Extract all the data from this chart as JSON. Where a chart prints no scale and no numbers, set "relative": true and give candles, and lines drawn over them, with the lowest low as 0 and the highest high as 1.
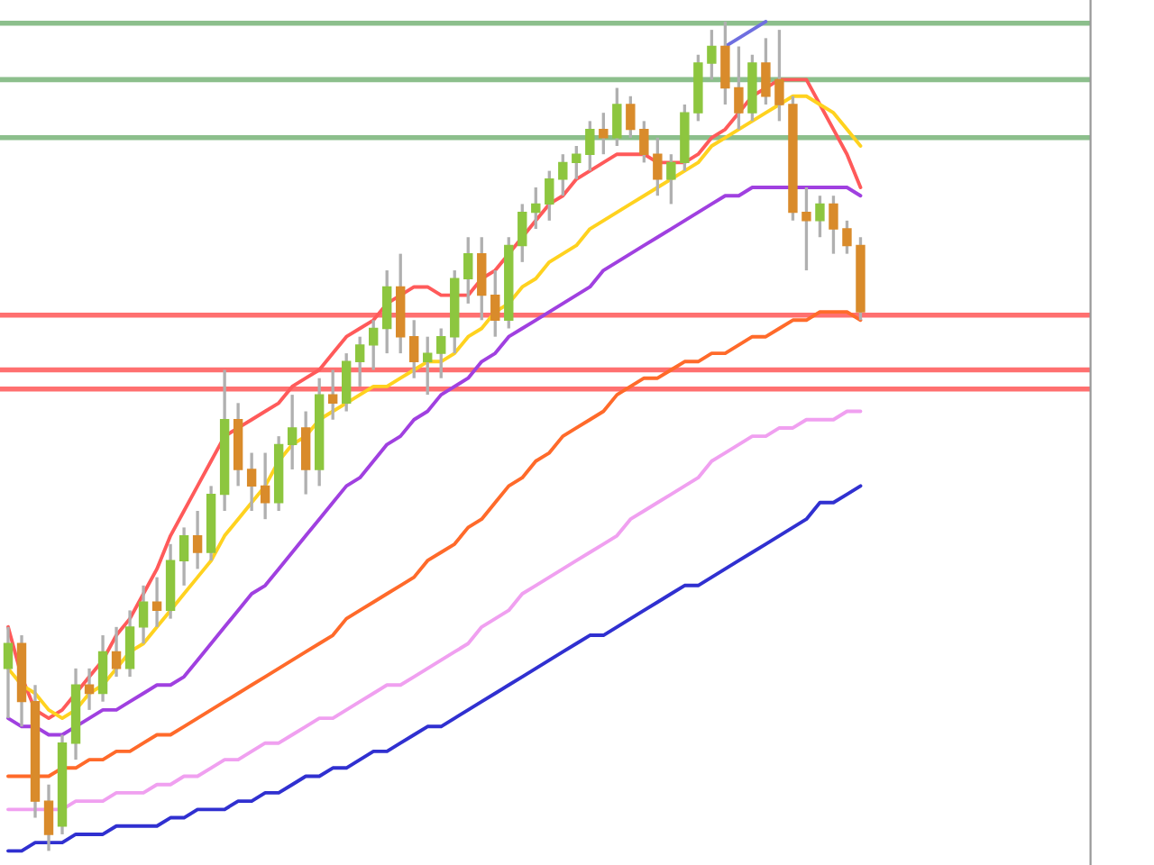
{
  "chart_data": {
    "type": "candlestick",
    "relative": true,
    "legend": false,
    "color": "#b0b0b0",
    "categories": [
      null,
      null,
      null,
      null,
      null,
      null,
      null,
      null,
      null,
      null,
      null,
      null,
      null,
      null,
      null,
      null,
      null,
      null,
      null,
      null,
      null,
      null,
      null,
      null,
      null,
      null,
      null,
      null,
      null,
      null,
      null,
      null,
      null,
      null,
      null,
      null,
      null,
      null,
      null,
      null,
      null,
      null,
      null,
      null,
      null,
      null,
      null,
      null,
      null,
      null,
      null,
      null,
      null,
      null,
      null,
      null,
      null,
      null,
      null,
      null,
      null,
      null,
      null,
      null
    ],
    "ohlc": [
      [
        0.22,
        0.27,
        0.16,
        0.25
      ],
      [
        0.25,
        0.26,
        0.15,
        0.18
      ],
      [
        0.18,
        0.2,
        0.04,
        0.06
      ],
      [
        0.06,
        0.08,
        0.0,
        0.02
      ],
      [
        0.03,
        0.14,
        0.02,
        0.13
      ],
      [
        0.13,
        0.22,
        0.11,
        0.2
      ],
      [
        0.2,
        0.22,
        0.17,
        0.19
      ],
      [
        0.19,
        0.26,
        0.18,
        0.24
      ],
      [
        0.24,
        0.27,
        0.21,
        0.22
      ],
      [
        0.22,
        0.29,
        0.21,
        0.27
      ],
      [
        0.27,
        0.32,
        0.25,
        0.3
      ],
      [
        0.3,
        0.33,
        0.27,
        0.29
      ],
      [
        0.29,
        0.37,
        0.28,
        0.35
      ],
      [
        0.35,
        0.39,
        0.32,
        0.38
      ],
      [
        0.38,
        0.41,
        0.34,
        0.36
      ],
      [
        0.36,
        0.44,
        0.35,
        0.43
      ],
      [
        0.43,
        0.58,
        0.41,
        0.52
      ],
      [
        0.52,
        0.54,
        0.44,
        0.46
      ],
      [
        0.46,
        0.48,
        0.41,
        0.44
      ],
      [
        0.44,
        0.48,
        0.4,
        0.42
      ],
      [
        0.42,
        0.5,
        0.41,
        0.49
      ],
      [
        0.49,
        0.55,
        0.46,
        0.51
      ],
      [
        0.51,
        0.53,
        0.43,
        0.46
      ],
      [
        0.46,
        0.57,
        0.44,
        0.55
      ],
      [
        0.55,
        0.58,
        0.52,
        0.54
      ],
      [
        0.54,
        0.6,
        0.53,
        0.59
      ],
      [
        0.59,
        0.62,
        0.56,
        0.61
      ],
      [
        0.61,
        0.64,
        0.58,
        0.63
      ],
      [
        0.63,
        0.7,
        0.6,
        0.68
      ],
      [
        0.68,
        0.72,
        0.6,
        0.62
      ],
      [
        0.62,
        0.64,
        0.57,
        0.59
      ],
      [
        0.59,
        0.62,
        0.55,
        0.6
      ],
      [
        0.6,
        0.63,
        0.57,
        0.62
      ],
      [
        0.62,
        0.7,
        0.6,
        0.69
      ],
      [
        0.69,
        0.74,
        0.66,
        0.72
      ],
      [
        0.72,
        0.74,
        0.64,
        0.67
      ],
      [
        0.67,
        0.7,
        0.62,
        0.64
      ],
      [
        0.64,
        0.74,
        0.63,
        0.73
      ],
      [
        0.73,
        0.78,
        0.71,
        0.77
      ],
      [
        0.77,
        0.8,
        0.75,
        0.78
      ],
      [
        0.78,
        0.82,
        0.76,
        0.81
      ],
      [
        0.81,
        0.84,
        0.79,
        0.83
      ],
      [
        0.83,
        0.85,
        0.81,
        0.84
      ],
      [
        0.84,
        0.88,
        0.82,
        0.87
      ],
      [
        0.87,
        0.89,
        0.84,
        0.86
      ],
      [
        0.86,
        0.92,
        0.85,
        0.9
      ],
      [
        0.9,
        0.91,
        0.86,
        0.87
      ],
      [
        0.87,
        0.88,
        0.83,
        0.84
      ],
      [
        0.84,
        0.86,
        0.79,
        0.81
      ],
      [
        0.81,
        0.84,
        0.78,
        0.83
      ],
      [
        0.83,
        0.9,
        0.82,
        0.89
      ],
      [
        0.89,
        0.96,
        0.88,
        0.95
      ],
      [
        0.95,
        0.99,
        0.93,
        0.97
      ],
      [
        0.97,
        1.0,
        0.9,
        0.92
      ],
      [
        0.92,
        0.97,
        0.87,
        0.89
      ],
      [
        0.89,
        0.96,
        0.88,
        0.95
      ],
      [
        0.95,
        0.98,
        0.9,
        0.91
      ],
      [
        0.93,
        0.99,
        0.88,
        0.9
      ],
      [
        0.9,
        0.91,
        0.76,
        0.77
      ],
      [
        0.77,
        0.8,
        0.7,
        0.76
      ],
      [
        0.76,
        0.79,
        0.74,
        0.78
      ],
      [
        0.78,
        0.79,
        0.72,
        0.75
      ],
      [
        0.75,
        0.76,
        0.72,
        0.73
      ],
      [
        0.73,
        0.74,
        0.64,
        0.65
      ]
    ],
    "colors": [
      "#8dc63f",
      "#d98b2b",
      "#d98b2b",
      "#d98b2b",
      "#8dc63f",
      "#8dc63f",
      "#d98b2b",
      "#8dc63f",
      "#d98b2b",
      "#8dc63f",
      "#8dc63f",
      "#d98b2b",
      "#8dc63f",
      "#8dc63f",
      "#d98b2b",
      "#8dc63f",
      "#8dc63f",
      "#d98b2b",
      "#d98b2b",
      "#d98b2b",
      "#8dc63f",
      "#8dc63f",
      "#d98b2b",
      "#8dc63f",
      "#d98b2b",
      "#8dc63f",
      "#8dc63f",
      "#8dc63f",
      "#8dc63f",
      "#d98b2b",
      "#d98b2b",
      "#8dc63f",
      "#8dc63f",
      "#8dc63f",
      "#8dc63f",
      "#d98b2b",
      "#d98b2b",
      "#8dc63f",
      "#8dc63f",
      "#8dc63f",
      "#8dc63f",
      "#8dc63f",
      "#8dc63f",
      "#8dc63f",
      "#d98b2b",
      "#8dc63f",
      "#d98b2b",
      "#d98b2b",
      "#d98b2b",
      "#8dc63f",
      "#8dc63f",
      "#8dc63f",
      "#8dc63f",
      "#d98b2b",
      "#d98b2b",
      "#8dc63f",
      "#d98b2b",
      "#d98b2b",
      "#d98b2b",
      "#d98b2b",
      "#8dc63f",
      "#d98b2b",
      "#d98b2b",
      "#d98b2b"
    ],
    "series": [
      {
        "type": "line",
        "color": "#ff5a5a",
        "values": [
          0.27,
          0.21,
          0.17,
          0.16,
          0.17,
          0.19,
          0.21,
          0.23,
          0.26,
          0.28,
          0.31,
          0.34,
          0.38,
          0.41,
          0.44,
          0.47,
          0.5,
          0.51,
          0.52,
          0.53,
          0.54,
          0.56,
          0.57,
          0.58,
          0.6,
          0.62,
          0.63,
          0.64,
          0.66,
          0.67,
          0.68,
          0.68,
          0.67,
          0.67,
          0.67,
          0.69,
          0.7,
          0.72,
          0.74,
          0.76,
          0.78,
          0.79,
          0.81,
          0.82,
          0.83,
          0.84,
          0.84,
          0.84,
          0.83,
          0.83,
          0.83,
          0.84,
          0.86,
          0.87,
          0.89,
          0.91,
          0.92,
          0.93,
          0.93,
          0.93,
          0.9,
          0.87,
          0.84,
          0.8
        ]
      },
      {
        "type": "line",
        "color": "#ffd21f",
        "values": [
          0.22,
          0.2,
          0.19,
          0.17,
          0.16,
          0.17,
          0.19,
          0.2,
          0.22,
          0.24,
          0.25,
          0.27,
          0.29,
          0.31,
          0.33,
          0.35,
          0.38,
          0.4,
          0.42,
          0.44,
          0.47,
          0.49,
          0.5,
          0.52,
          0.53,
          0.54,
          0.55,
          0.56,
          0.56,
          0.57,
          0.58,
          0.59,
          0.59,
          0.6,
          0.62,
          0.63,
          0.65,
          0.66,
          0.68,
          0.69,
          0.71,
          0.72,
          0.73,
          0.75,
          0.76,
          0.77,
          0.78,
          0.79,
          0.8,
          0.81,
          0.82,
          0.83,
          0.85,
          0.86,
          0.87,
          0.88,
          0.89,
          0.9,
          0.91,
          0.91,
          0.9,
          0.89,
          0.87,
          0.85
        ]
      },
      {
        "type": "line",
        "color": "#a040e0",
        "values": [
          0.16,
          0.15,
          0.15,
          0.14,
          0.14,
          0.15,
          0.16,
          0.17,
          0.17,
          0.18,
          0.19,
          0.2,
          0.2,
          0.21,
          0.23,
          0.25,
          0.27,
          0.29,
          0.31,
          0.32,
          0.34,
          0.36,
          0.38,
          0.4,
          0.42,
          0.44,
          0.45,
          0.47,
          0.49,
          0.5,
          0.52,
          0.53,
          0.55,
          0.56,
          0.57,
          0.59,
          0.6,
          0.62,
          0.63,
          0.64,
          0.65,
          0.66,
          0.67,
          0.68,
          0.7,
          0.71,
          0.72,
          0.73,
          0.74,
          0.75,
          0.76,
          0.77,
          0.78,
          0.79,
          0.79,
          0.8,
          0.8,
          0.8,
          0.8,
          0.8,
          0.8,
          0.8,
          0.8,
          0.79
        ]
      },
      {
        "type": "line",
        "color": "#ff6a2a",
        "values": [
          0.09,
          0.09,
          0.09,
          0.09,
          0.1,
          0.1,
          0.11,
          0.11,
          0.12,
          0.12,
          0.13,
          0.14,
          0.14,
          0.15,
          0.16,
          0.17,
          0.18,
          0.19,
          0.2,
          0.21,
          0.22,
          0.23,
          0.24,
          0.25,
          0.26,
          0.28,
          0.29,
          0.3,
          0.31,
          0.32,
          0.33,
          0.35,
          0.36,
          0.37,
          0.39,
          0.4,
          0.42,
          0.44,
          0.45,
          0.47,
          0.48,
          0.5,
          0.51,
          0.52,
          0.53,
          0.55,
          0.56,
          0.57,
          0.57,
          0.58,
          0.59,
          0.59,
          0.6,
          0.6,
          0.61,
          0.62,
          0.62,
          0.63,
          0.64,
          0.64,
          0.65,
          0.65,
          0.65,
          0.64
        ]
      },
      {
        "type": "line",
        "color": "#f0a0f0",
        "values": [
          0.05,
          0.05,
          0.05,
          0.05,
          0.05,
          0.06,
          0.06,
          0.06,
          0.07,
          0.07,
          0.07,
          0.08,
          0.08,
          0.09,
          0.09,
          0.1,
          0.11,
          0.11,
          0.12,
          0.13,
          0.13,
          0.14,
          0.15,
          0.16,
          0.16,
          0.17,
          0.18,
          0.19,
          0.2,
          0.2,
          0.21,
          0.22,
          0.23,
          0.24,
          0.25,
          0.27,
          0.28,
          0.29,
          0.31,
          0.32,
          0.33,
          0.34,
          0.35,
          0.36,
          0.37,
          0.38,
          0.4,
          0.41,
          0.42,
          0.43,
          0.44,
          0.45,
          0.47,
          0.48,
          0.49,
          0.5,
          0.5,
          0.51,
          0.51,
          0.52,
          0.52,
          0.52,
          0.53,
          0.53
        ]
      },
      {
        "type": "line",
        "color": "#3030d0",
        "values": [
          0.0,
          0.0,
          0.01,
          0.01,
          0.01,
          0.02,
          0.02,
          0.02,
          0.03,
          0.03,
          0.03,
          0.03,
          0.04,
          0.04,
          0.05,
          0.05,
          0.05,
          0.06,
          0.06,
          0.07,
          0.07,
          0.08,
          0.09,
          0.09,
          0.1,
          0.1,
          0.11,
          0.12,
          0.12,
          0.13,
          0.14,
          0.15,
          0.15,
          0.16,
          0.17,
          0.18,
          0.19,
          0.2,
          0.21,
          0.22,
          0.23,
          0.24,
          0.25,
          0.26,
          0.26,
          0.27,
          0.28,
          0.29,
          0.3,
          0.31,
          0.32,
          0.32,
          0.33,
          0.34,
          0.35,
          0.36,
          0.37,
          0.38,
          0.39,
          0.4,
          0.42,
          0.42,
          0.43,
          0.44
        ]
      },
      {
        "type": "line",
        "color": "#6f6fe0",
        "values": [
          null,
          null,
          null,
          null,
          null,
          null,
          null,
          null,
          null,
          null,
          null,
          null,
          null,
          null,
          null,
          null,
          null,
          null,
          null,
          null,
          null,
          null,
          null,
          null,
          null,
          null,
          null,
          null,
          null,
          null,
          null,
          null,
          null,
          null,
          null,
          null,
          null,
          null,
          null,
          null,
          null,
          null,
          null,
          null,
          null,
          null,
          null,
          null,
          null,
          null,
          null,
          null,
          null,
          0.97,
          0.98,
          0.99,
          1.0,
          null,
          null,
          null,
          null,
          null,
          null,
          null
        ]
      }
    ],
    "ref_lines": [
      {
        "axis": "y",
        "value": 0.998,
        "color": "#80b880"
      },
      {
        "axis": "y",
        "value": 0.93,
        "color": "#80b880"
      },
      {
        "axis": "y",
        "value": 0.86,
        "color": "#80b880"
      },
      {
        "axis": "y",
        "value": 0.646,
        "color": "#ff6060"
      },
      {
        "axis": "y",
        "value": 0.58,
        "color": "#ff6060"
      },
      {
        "axis": "y",
        "value": 0.557,
        "color": "#ff6060"
      }
    ]
  }
}
